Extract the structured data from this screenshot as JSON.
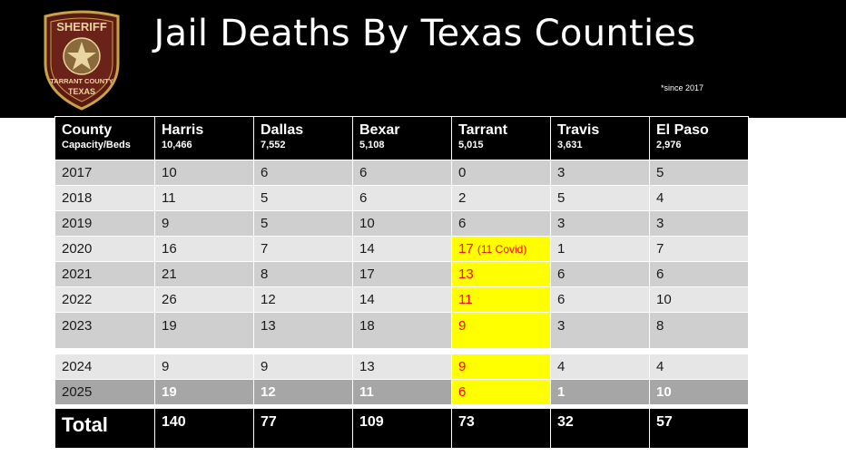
{
  "header": {
    "title": "Jail Deaths By Texas Counties",
    "note": "*since 2017",
    "badge": {
      "top": "SHERIFF",
      "middle": "TARRANT COUNTY",
      "bottom": "TEXAS"
    }
  },
  "table": {
    "columns": [
      {
        "name": "County",
        "sub": "Capacity/Beds"
      },
      {
        "name": "Harris",
        "sub": "10,466"
      },
      {
        "name": "Dallas",
        "sub": "7,552"
      },
      {
        "name": "Bexar",
        "sub": "5,108"
      },
      {
        "name": "Tarrant",
        "sub": "5,015"
      },
      {
        "name": "Travis",
        "sub": "3,631"
      },
      {
        "name": "El Paso",
        "sub": "2,976"
      }
    ],
    "rows": [
      {
        "year": "2017",
        "values": [
          "10",
          "6",
          "6",
          "0",
          "3",
          "5"
        ]
      },
      {
        "year": "2018",
        "values": [
          "11",
          "5",
          "6",
          "2",
          "5",
          "4"
        ]
      },
      {
        "year": "2019",
        "values": [
          "9",
          "5",
          "10",
          "6",
          "3",
          "3"
        ]
      },
      {
        "year": "2020",
        "values": [
          "16",
          "7",
          "14",
          "17",
          "1",
          "7"
        ],
        "tarrant_note": "(11 Covid)"
      },
      {
        "year": "2021",
        "values": [
          "21",
          "8",
          "17",
          "13",
          "6",
          "6"
        ]
      },
      {
        "year": "2022",
        "values": [
          "26",
          "12",
          "14",
          "11",
          "6",
          "10"
        ]
      },
      {
        "year": "2023",
        "values": [
          "19",
          "13",
          "18",
          "9",
          "3",
          "8"
        ]
      },
      {
        "year": "2024",
        "values": [
          "9",
          "9",
          "13",
          "9",
          "4",
          "4"
        ]
      },
      {
        "year": "2025",
        "values": [
          "19",
          "12",
          "11",
          "6",
          "1",
          "10"
        ]
      }
    ],
    "total": {
      "label": "Total",
      "values": [
        "140",
        "77",
        "109",
        "73",
        "32",
        "57"
      ]
    }
  },
  "colors": {
    "highlight": "#ffff00",
    "highlight_text": "#ff0000",
    "header_bg": "#000000"
  }
}
